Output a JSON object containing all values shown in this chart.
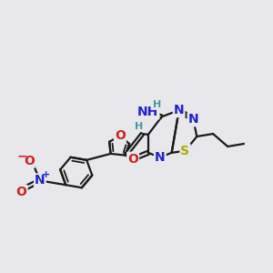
{
  "bg_color": "#e8e8ec",
  "bond_color": "#1a1a1a",
  "bond_width": 1.6,
  "N_color": "#2222cc",
  "O_color": "#cc2222",
  "S_color": "#aaaa00",
  "H_color": "#449999",
  "fontsize": 10,
  "fontsize_small": 8,
  "xlim": [
    0,
    10
  ],
  "ylim": [
    0,
    10
  ]
}
